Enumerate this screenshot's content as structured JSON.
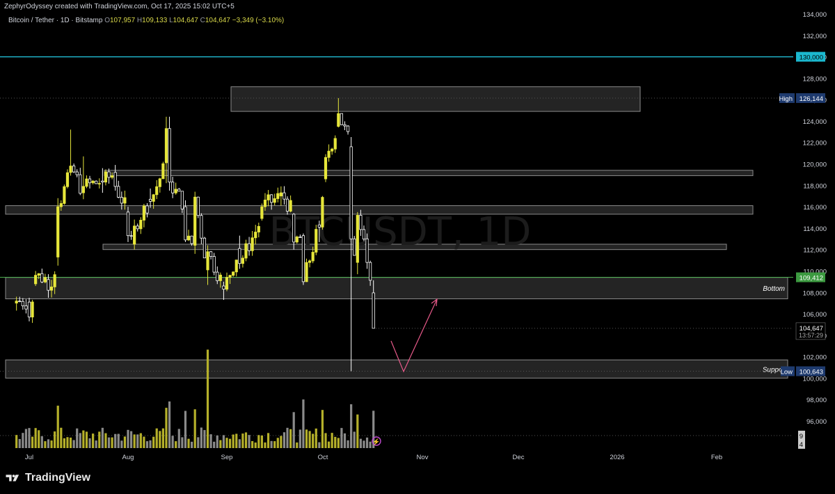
{
  "header": {
    "credit": "ZephyrOdyssey created with TradingView.com, Oct 17, 2025 15:02 UTC+5",
    "symbol": "Bitcoin / Tether · 1D · Bitstamp",
    "open_label": "O",
    "open": "107,957",
    "high_label": "H",
    "high": "109,133",
    "low_label": "L",
    "low": "104,647",
    "close_label": "C",
    "close": "104,647",
    "change": "−3,349 (−3.10%)"
  },
  "watermark": "BTCUSDT, 1D",
  "brand": "TradingView",
  "colors": {
    "bull": "#e6e63a",
    "bear": "#ffffff",
    "zone_fill": "#2a2a2a",
    "zone_border": "#8a8a8a",
    "cyan_line": "#20b2c8",
    "green_line": "#4caf50",
    "projection": "#e85a8a"
  },
  "chart_data": {
    "type": "candlestick",
    "symbol": "BTCUSDT",
    "timeframe": "1D",
    "ylim": [
      93500,
      134500
    ],
    "y_ticks": [
      96000,
      98000,
      100000,
      102000,
      104000,
      106000,
      108000,
      110000,
      112000,
      114000,
      116000,
      118000,
      120000,
      122000,
      124000,
      126000,
      128000,
      130000,
      132000,
      134000
    ],
    "x_ticks": [
      "Jul",
      "Aug",
      "Sep",
      "Oct",
      "Nov",
      "Dec",
      "2026",
      "Feb"
    ],
    "price_labels": {
      "cyan_level": "130,000",
      "high_label": "High",
      "high_value": "126,144",
      "green_level": "109,412",
      "last_price": "104,647",
      "countdown": "13:57:29",
      "low_label": "Low",
      "low_value": "100,643"
    },
    "levels": {
      "cyan": 130000,
      "high": 126144,
      "green": 109412,
      "last": 104647,
      "low": 100643
    },
    "zones": [
      {
        "from": 124900,
        "to": 127200
      },
      {
        "from": 118900,
        "to": 119400
      },
      {
        "from": 115300,
        "to": 116100
      },
      {
        "from": 112000,
        "to": 112500
      },
      {
        "from": 107400,
        "to": 109400,
        "label": "Bottom"
      },
      {
        "from": 100000,
        "to": 101700,
        "label": "Suppor"
      }
    ],
    "candles_summary": [
      [
        "2025-06-27",
        107000,
        107600,
        106300,
        107200
      ],
      [
        "2025-07-01",
        107100,
        107500,
        105300,
        105700
      ],
      [
        "2025-07-03",
        108800,
        110000,
        108600,
        109600
      ],
      [
        "2025-07-07",
        109200,
        109700,
        107500,
        108200
      ],
      [
        "2025-07-10",
        111300,
        116800,
        110500,
        116000
      ],
      [
        "2025-07-14",
        119200,
        123200,
        118900,
        119800
      ],
      [
        "2025-07-18",
        117300,
        120700,
        116700,
        117900
      ],
      [
        "2025-07-24",
        118400,
        119600,
        117300,
        118300
      ],
      [
        "2025-07-28",
        119200,
        119900,
        117500,
        117900
      ],
      [
        "2025-08-01",
        115500,
        116000,
        112700,
        113300
      ],
      [
        "2025-08-03",
        112500,
        114800,
        112000,
        114200
      ],
      [
        "2025-08-08",
        116700,
        117700,
        115900,
        116500
      ],
      [
        "2025-08-13",
        120100,
        124400,
        118200,
        123300
      ],
      [
        "2025-08-14",
        123300,
        124400,
        117500,
        118300
      ],
      [
        "2025-08-19",
        116000,
        116600,
        112700,
        112900
      ],
      [
        "2025-08-22",
        112400,
        117400,
        111600,
        116900
      ],
      [
        "2025-08-26",
        110100,
        112400,
        108700,
        111800
      ],
      [
        "2025-08-31",
        108600,
        109000,
        107300,
        108300
      ],
      [
        "2025-09-05",
        112100,
        113300,
        110200,
        110700
      ],
      [
        "2025-09-12",
        114900,
        116300,
        114700,
        116000
      ],
      [
        "2025-09-18",
        117000,
        117900,
        116100,
        117300
      ],
      [
        "2025-09-22",
        115300,
        115400,
        112000,
        112700
      ],
      [
        "2025-09-25",
        113300,
        113500,
        108700,
        109000
      ],
      [
        "2025-09-30",
        114300,
        114700,
        112700,
        114100
      ],
      [
        "2025-10-02",
        118600,
        120900,
        118300,
        120600
      ],
      [
        "2025-10-06",
        123500,
        126144,
        123400,
        124700
      ],
      [
        "2025-10-10",
        121600,
        122500,
        100643,
        113000
      ],
      [
        "2025-10-12",
        110800,
        115500,
        109700,
        115200
      ],
      [
        "2025-10-15",
        113000,
        113500,
        110200,
        110800
      ],
      [
        "2025-10-17",
        107957,
        109133,
        104647,
        104647
      ]
    ],
    "volume_axis_labels": [
      "9",
      "4"
    ],
    "projection": "down to ~100,500 then up toward ~108,500",
    "grid": false,
    "legend": "none"
  }
}
